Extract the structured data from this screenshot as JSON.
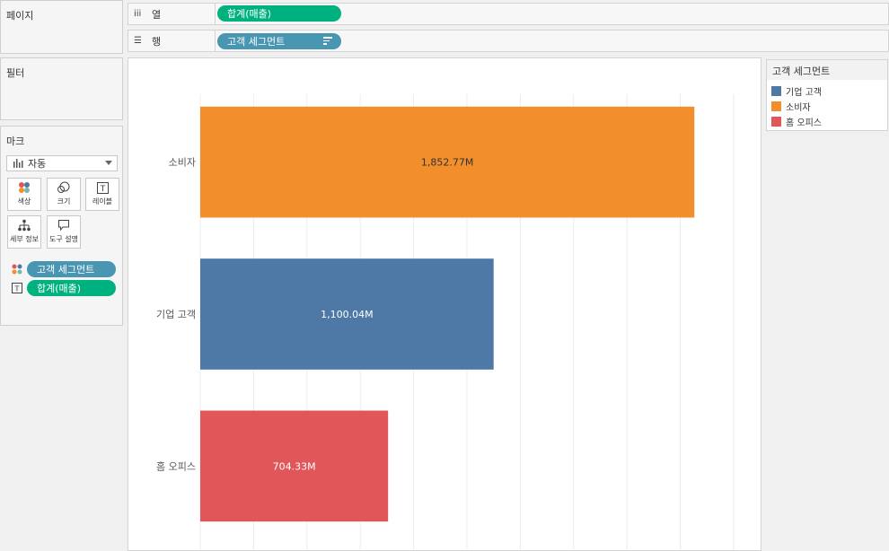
{
  "left_pane": {
    "pages_title": "페이지",
    "filters_title": "필터",
    "marks_title": "마크",
    "mark_type": "자동",
    "buttons": {
      "color": "색상",
      "size": "크기",
      "label": "레이블",
      "detail": "세부 정보",
      "tooltip": "도구 설명"
    },
    "mark_pills": [
      {
        "label": "고객 세그먼트",
        "kind": "color"
      },
      {
        "label": "합계(매출)",
        "kind": "label"
      }
    ]
  },
  "shelves": {
    "columns_label": "열",
    "columns_pill": "합계(매출)",
    "rows_label": "행",
    "rows_pill": "고객 세그먼트"
  },
  "legend": {
    "title": "고객 세그먼트",
    "items": [
      {
        "label": "기업 고객",
        "color": "#4e79a7"
      },
      {
        "label": "소비자",
        "color": "#f28e2b"
      },
      {
        "label": "홈 오피스",
        "color": "#e15759"
      }
    ]
  },
  "chart_data": {
    "type": "bar",
    "orientation": "horizontal",
    "categories": [
      "소비자",
      "기업 고객",
      "홈 오피스"
    ],
    "values": [
      1852.77,
      1100.04,
      704.33
    ],
    "value_labels": [
      "1,852.77M",
      "1,100.04M",
      "704.33M"
    ],
    "colors": [
      "#f28e2b",
      "#4e79a7",
      "#e15759"
    ],
    "label_colors": [
      "#333333",
      "#ffffff",
      "#ffffff"
    ],
    "xlim": [
      0,
      2000
    ],
    "grid_step": 200,
    "grid": true,
    "legend_position": "right"
  }
}
